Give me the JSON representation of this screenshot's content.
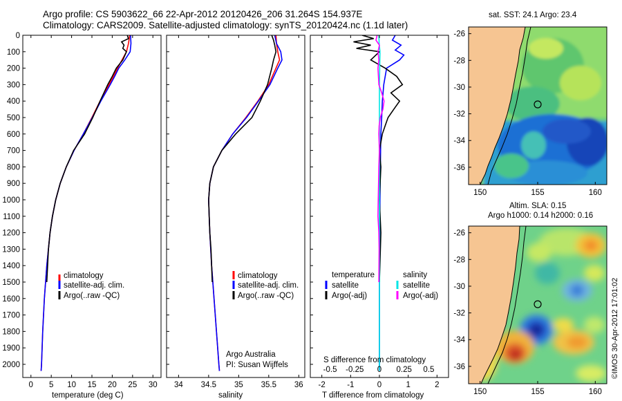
{
  "header": {
    "line1": "Argo profile: CS 5903622_66 22-Apr-2012 20120426_206 31.264S 154.937E",
    "line2": "Climatology: CARS2009. Satellite-adjusted climatology: synTS_20120424.nc (1.1d later)"
  },
  "colors": {
    "clim": "#ff0000",
    "sat": "#0000ff",
    "argo": "#000000",
    "s_sat": "#00e5e5",
    "s_argo": "#ff00ff",
    "land": "#f6c592"
  },
  "chart_data": [
    {
      "type": "line",
      "title": "",
      "xlabel": "temperature (deg C)",
      "ylabel": "",
      "xlim": [
        -2,
        32
      ],
      "ylim": [
        2080,
        0
      ],
      "xticks": [
        0,
        5,
        10,
        15,
        20,
        25,
        30
      ],
      "yticks": [
        0,
        100,
        200,
        300,
        400,
        500,
        600,
        700,
        800,
        900,
        1000,
        1100,
        1200,
        1300,
        1400,
        1500,
        1600,
        1700,
        1800,
        1900,
        2000
      ],
      "legend": [
        "climatology",
        "satellite-adj. clim.",
        "Argo(..raw -QC)"
      ],
      "series": [
        {
          "name": "climatology",
          "color": "#ff0000",
          "depth": [
            0,
            50,
            100,
            150,
            200,
            250,
            300,
            400,
            500,
            600,
            700,
            800,
            900,
            1000,
            1100,
            1200,
            1400,
            1600,
            1800,
            2000,
            2040
          ],
          "values": [
            24.3,
            24.0,
            23.5,
            22.4,
            21.3,
            20.3,
            19.2,
            17.0,
            15.0,
            12.9,
            10.6,
            8.7,
            7.2,
            6.1,
            5.3,
            4.7,
            3.9,
            3.3,
            2.9,
            2.6,
            2.5
          ]
        },
        {
          "name": "satellite-adj. clim.",
          "color": "#0000ff",
          "depth": [
            0,
            50,
            100,
            150,
            200,
            250,
            300,
            400,
            500,
            600,
            700,
            800,
            900,
            1000,
            1100,
            1200,
            1400,
            1600,
            1800,
            2000,
            2040
          ],
          "values": [
            24.5,
            24.6,
            24.4,
            23.1,
            21.6,
            20.6,
            19.5,
            17.2,
            15.1,
            12.9,
            10.6,
            8.7,
            7.2,
            6.1,
            5.3,
            4.7,
            3.9,
            3.3,
            2.9,
            2.6,
            2.5
          ]
        },
        {
          "name": "Argo(..raw -QC)",
          "color": "#000000",
          "depth": [
            0,
            20,
            40,
            60,
            80,
            100,
            150,
            200,
            250,
            300,
            400,
            500,
            600,
            700,
            800,
            900,
            1000,
            1100,
            1200,
            1300,
            1400,
            1500
          ],
          "values": [
            23.7,
            24.0,
            22.3,
            22.9,
            22.6,
            23.5,
            22.6,
            21.0,
            20.0,
            18.9,
            17.0,
            15.2,
            13.2,
            10.5,
            8.7,
            7.2,
            6.1,
            5.3,
            4.7,
            4.3,
            4.1,
            3.9
          ]
        }
      ]
    },
    {
      "type": "line",
      "title": "",
      "xlabel": "salinity",
      "ylabel": "",
      "xlim": [
        33.8,
        36.1
      ],
      "ylim": [
        2080,
        0
      ],
      "xticks": [
        34,
        34.5,
        35,
        35.5,
        36
      ],
      "legend": [
        "climatology",
        "satellite-adj. clim.",
        "Argo(..raw -QC)"
      ],
      "annotation": [
        "Argo Australia",
        "PI: Susan Wijffels"
      ],
      "series": [
        {
          "name": "climatology",
          "color": "#ff0000",
          "depth": [
            0,
            50,
            100,
            150,
            200,
            300,
            400,
            500,
            600,
            700,
            800,
            900,
            1000,
            1100,
            1200,
            1400,
            1600,
            1800,
            2000,
            2040
          ],
          "values": [
            35.62,
            35.63,
            35.65,
            35.68,
            35.62,
            35.5,
            35.32,
            35.12,
            34.9,
            34.72,
            34.58,
            34.52,
            34.5,
            34.51,
            34.52,
            34.55,
            34.59,
            34.63,
            34.67,
            34.68
          ]
        },
        {
          "name": "satellite-adj. clim.",
          "color": "#0000ff",
          "depth": [
            0,
            50,
            100,
            150,
            200,
            300,
            400,
            500,
            600,
            700,
            800,
            900,
            1000,
            1100,
            1200,
            1400,
            1600,
            1800,
            2000,
            2040
          ],
          "values": [
            35.6,
            35.63,
            35.7,
            35.72,
            35.65,
            35.52,
            35.33,
            35.13,
            34.9,
            34.72,
            34.58,
            34.52,
            34.5,
            34.51,
            34.52,
            34.55,
            34.59,
            34.63,
            34.67,
            34.68
          ]
        },
        {
          "name": "Argo(..raw -QC)",
          "color": "#000000",
          "depth": [
            0,
            30,
            60,
            100,
            150,
            200,
            300,
            400,
            500,
            600,
            700,
            800,
            900,
            1000,
            1100,
            1200,
            1300,
            1400,
            1500
          ],
          "values": [
            35.55,
            35.58,
            35.6,
            35.62,
            35.58,
            35.55,
            35.48,
            35.36,
            35.22,
            34.95,
            34.72,
            34.58,
            34.52,
            34.5,
            34.51,
            34.52,
            34.54,
            34.55,
            34.56
          ]
        }
      ]
    },
    {
      "type": "line",
      "title": "",
      "xlabel": "T difference from climatology",
      "xlabel2": "S difference from climatology",
      "xlim": [
        -2.4,
        2.4
      ],
      "ylim": [
        2080,
        0
      ],
      "xticks": [
        -2,
        -1,
        0,
        1,
        2
      ],
      "xticks2": [
        -0.5,
        -0.25,
        0,
        0.25,
        0.5
      ],
      "legend_title_t": "temperature",
      "legend_title_s": "salinity",
      "legend_t": [
        "satellite",
        "Argo(-adj)"
      ],
      "legend_s": [
        "satellite",
        "Argo(-adj)"
      ],
      "series": [
        {
          "name": "T satellite",
          "color": "#0000ff",
          "depth": [
            0,
            30,
            60,
            90,
            120,
            150,
            200,
            300,
            400,
            500,
            600,
            700,
            1000,
            1500,
            2040
          ],
          "values": [
            0.55,
            0.45,
            0.75,
            0.55,
            0.85,
            0.7,
            0.25,
            0.15,
            0.1,
            0.08,
            0.05,
            0.04,
            0.02,
            0.0,
            0.0
          ]
        },
        {
          "name": "T Argo(-adj)",
          "color": "#000000",
          "depth": [
            0,
            20,
            40,
            60,
            80,
            100,
            150,
            200,
            250,
            300,
            350,
            400,
            450,
            500,
            550,
            600,
            700,
            800,
            1000,
            1200,
            1500
          ],
          "values": [
            -0.6,
            -0.2,
            -0.9,
            -0.3,
            -0.8,
            0.0,
            -0.3,
            0.2,
            0.6,
            0.8,
            0.4,
            0.7,
            0.5,
            0.3,
            0.2,
            0.1,
            0.0,
            0.05,
            0.0,
            0.05,
            0.0
          ]
        },
        {
          "name": "S satellite",
          "color": "#00e5e5",
          "depth": [
            0,
            50,
            100,
            200,
            300,
            400,
            500,
            600,
            800,
            1000,
            1500,
            2040
          ],
          "values": [
            -0.02,
            -0.01,
            0.02,
            0.01,
            0.0,
            0.0,
            0.0,
            0.0,
            0.0,
            0.0,
            0.0,
            0.0
          ]
        },
        {
          "name": "S Argo(-adj)",
          "color": "#ff00ff",
          "depth": [
            0,
            30,
            60,
            100,
            150,
            200,
            300,
            350,
            400,
            450,
            500,
            550,
            600,
            700,
            800,
            1000,
            1100,
            1200,
            1300,
            1500
          ],
          "values": [
            -0.08,
            -0.12,
            0.0,
            -0.05,
            -0.02,
            -0.05,
            -0.02,
            0.08,
            0.16,
            0.12,
            0.03,
            -0.01,
            -0.02,
            0.0,
            -0.02,
            -0.04,
            -0.05,
            -0.02,
            -0.01,
            -0.02
          ]
        }
      ]
    },
    {
      "type": "heatmap",
      "title": "sat. SST: 24.1 Argo: 23.4",
      "xlim": [
        149,
        161
      ],
      "ylim": [
        -37.3,
        -25.5
      ],
      "xticks": [
        150,
        155,
        160
      ],
      "yticks": [
        -26,
        -28,
        -30,
        -32,
        -34,
        -36
      ],
      "marker": [
        154.937,
        -31.264
      ]
    },
    {
      "type": "heatmap",
      "title": "Altim. SLA: 0.15",
      "subtitle": "Argo h1000: 0.14 h2000: 0.16",
      "xlim": [
        149,
        161
      ],
      "ylim": [
        -37.3,
        -25.5
      ],
      "xticks": [
        150,
        155,
        160
      ],
      "yticks": [
        -26,
        -28,
        -30,
        -32,
        -34,
        -36
      ],
      "marker": [
        154.937,
        -31.264
      ]
    }
  ],
  "footer": {
    "stamp": "©IMOS 30-Apr-2012 17:01:02"
  }
}
